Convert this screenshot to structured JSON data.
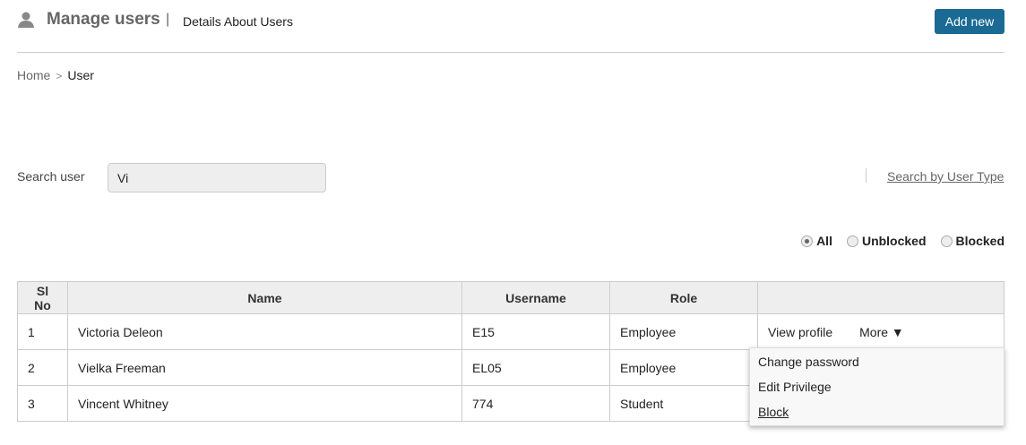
{
  "header": {
    "title": "Manage users",
    "separator": "|",
    "subtitle": "Details About Users",
    "add_button": "Add new",
    "icon": "user-icon"
  },
  "breadcrumb": {
    "home": "Home",
    "separator": ">",
    "current": "User"
  },
  "search": {
    "label": "Search user",
    "value": "Vi",
    "by_type_link": "Search by User Type"
  },
  "filter": {
    "options": [
      "All",
      "Unblocked",
      "Blocked"
    ],
    "selected": "All"
  },
  "table": {
    "columns": [
      "Sl No",
      "Name",
      "Username",
      "Role",
      ""
    ],
    "rows": [
      {
        "sl": "1",
        "name": "Victoria Deleon",
        "username": "E15",
        "role": "Employee"
      },
      {
        "sl": "2",
        "name": "Vielka Freeman",
        "username": "EL05",
        "role": "Employee"
      },
      {
        "sl": "3",
        "name": "Vincent Whitney",
        "username": "774",
        "role": "Student"
      }
    ],
    "view_profile": "View profile",
    "more": "More ▼"
  },
  "menu": {
    "items": [
      "Change password",
      "Edit Privilege",
      "Block"
    ]
  },
  "colors": {
    "accent": "#1a6a94"
  }
}
